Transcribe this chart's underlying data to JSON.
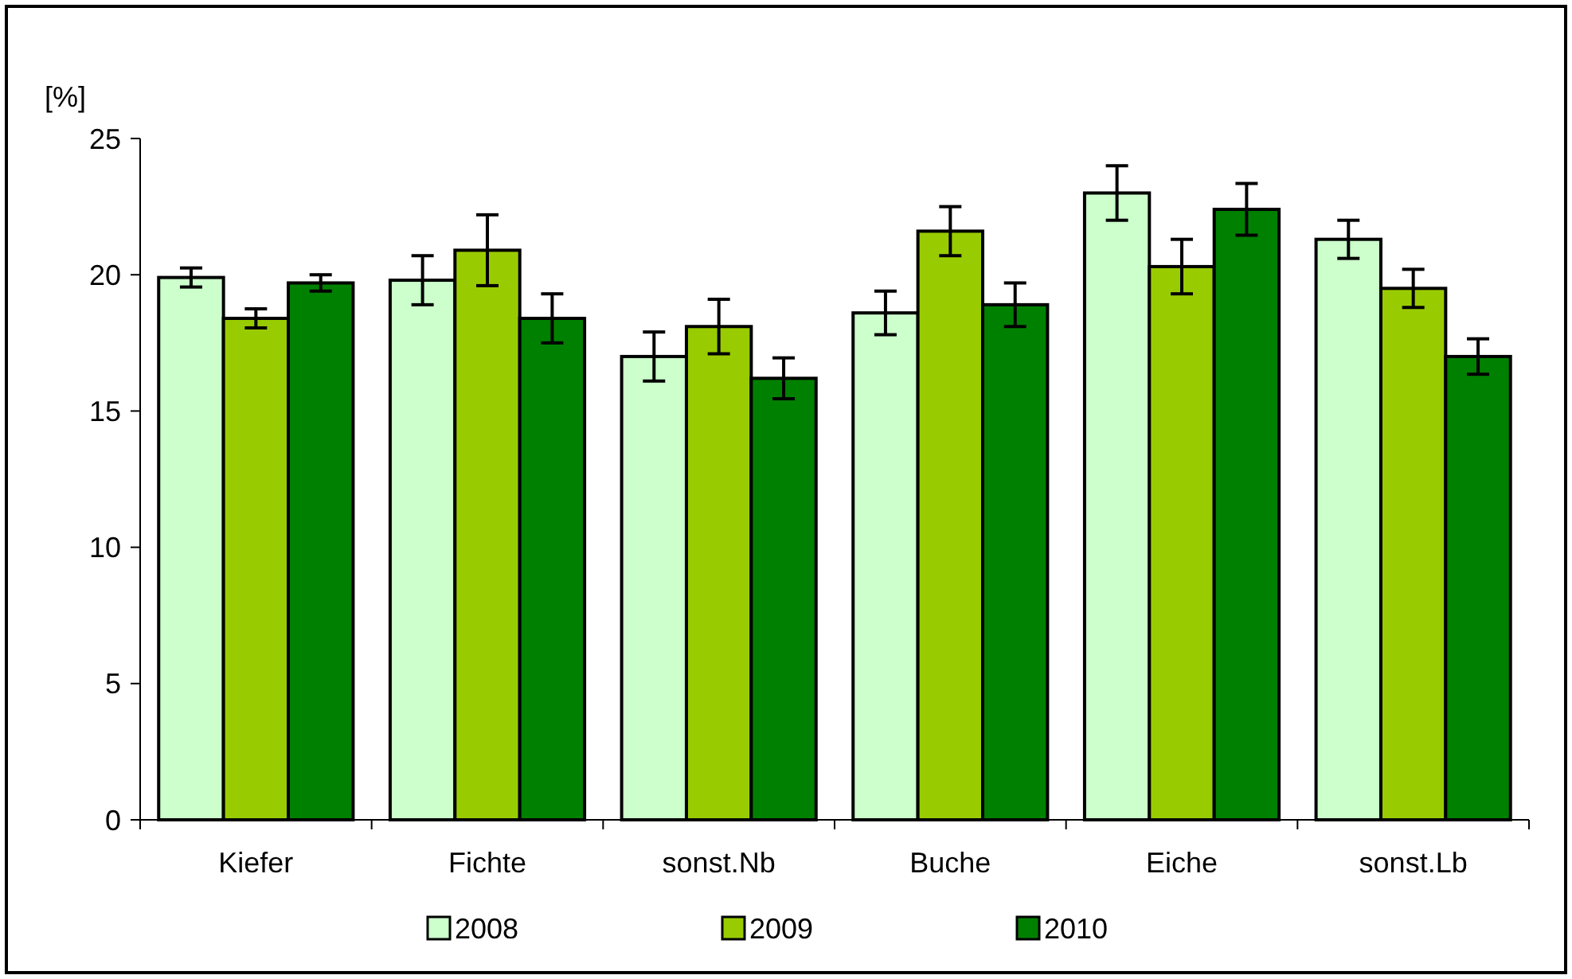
{
  "chart_data": {
    "type": "bar",
    "ylabel": "[%]",
    "categories": [
      "Kiefer",
      "Fichte",
      "sonst.Nb",
      "Buche",
      "Eiche",
      "sonst.Lb"
    ],
    "series": [
      {
        "name": "2008",
        "color": "#ccffcc",
        "values": [
          19.9,
          19.8,
          17.0,
          18.6,
          23.0,
          21.3
        ],
        "errors": [
          0.35,
          0.9,
          0.9,
          0.8,
          1.0,
          0.7
        ]
      },
      {
        "name": "2009",
        "color": "#99cc00",
        "values": [
          18.4,
          20.9,
          18.1,
          21.6,
          20.3,
          19.5
        ],
        "errors": [
          0.35,
          1.3,
          1.0,
          0.9,
          1.0,
          0.7
        ]
      },
      {
        "name": "2010",
        "color": "#008000",
        "values": [
          19.7,
          18.4,
          16.2,
          18.9,
          22.4,
          17.0
        ],
        "errors": [
          0.3,
          0.9,
          0.75,
          0.8,
          0.95,
          0.65
        ]
      }
    ],
    "ylim": [
      0,
      25
    ],
    "yticks": [
      0,
      5,
      10,
      15,
      20,
      25
    ],
    "grid": false,
    "legend": "bottom"
  }
}
